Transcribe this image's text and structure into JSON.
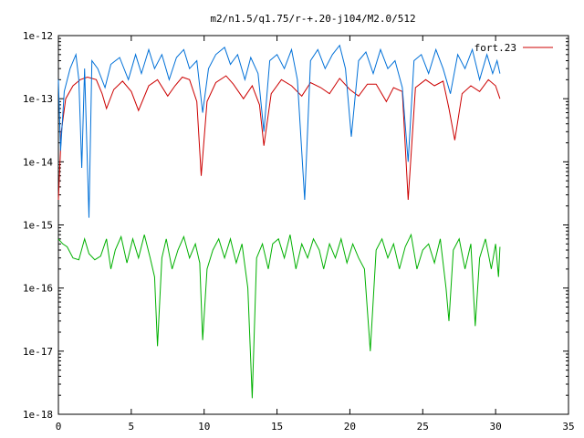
{
  "chart_data": {
    "type": "line",
    "title": "m2/n1.5/q1.75/r-+.20-j104/M2.0/512",
    "xlabel": "",
    "ylabel": "",
    "xlim": [
      0,
      35
    ],
    "ylim": [
      1e-18,
      1e-12
    ],
    "yscale": "log",
    "grid": false,
    "legend_position": "top-right",
    "x_ticks": [
      0,
      5,
      10,
      15,
      20,
      25,
      30,
      35
    ],
    "y_tick_labels": [
      "1e-12",
      "1e-13",
      "1e-14",
      "1e-15",
      "1e-16",
      "1e-17",
      "1e-18"
    ],
    "y_tick_values": [
      1e-12,
      1e-13,
      1e-14,
      1e-15,
      1e-16,
      1e-17,
      1e-18
    ],
    "series": [
      {
        "name": "fort.23",
        "color": "#cc0000",
        "points": [
          [
            0.0,
            2.5e-15
          ],
          [
            0.2,
            3e-14
          ],
          [
            0.5,
            1e-13
          ],
          [
            1.0,
            1.6e-13
          ],
          [
            1.5,
            2e-13
          ],
          [
            2.0,
            2.2e-13
          ],
          [
            2.6,
            2e-13
          ],
          [
            3.0,
            1.2e-13
          ],
          [
            3.3,
            7e-14
          ],
          [
            3.8,
            1.4e-13
          ],
          [
            4.4,
            1.9e-13
          ],
          [
            5.0,
            1.3e-13
          ],
          [
            5.5,
            6.5e-14
          ],
          [
            6.2,
            1.6e-13
          ],
          [
            6.8,
            2e-13
          ],
          [
            7.5,
            1.1e-13
          ],
          [
            8.0,
            1.6e-13
          ],
          [
            8.5,
            2.2e-13
          ],
          [
            9.0,
            2e-13
          ],
          [
            9.5,
            9e-14
          ],
          [
            9.8,
            6e-15
          ],
          [
            10.2,
            9e-14
          ],
          [
            10.8,
            1.8e-13
          ],
          [
            11.5,
            2.3e-13
          ],
          [
            12.0,
            1.7e-13
          ],
          [
            12.7,
            1e-13
          ],
          [
            13.3,
            1.6e-13
          ],
          [
            13.8,
            8e-14
          ],
          [
            14.1,
            1.8e-14
          ],
          [
            14.6,
            1.2e-13
          ],
          [
            15.3,
            2e-13
          ],
          [
            16.0,
            1.6e-13
          ],
          [
            16.7,
            1.1e-13
          ],
          [
            17.3,
            1.8e-13
          ],
          [
            18.0,
            1.5e-13
          ],
          [
            18.6,
            1.2e-13
          ],
          [
            19.3,
            2.1e-13
          ],
          [
            20.0,
            1.4e-13
          ],
          [
            20.6,
            1.1e-13
          ],
          [
            21.2,
            1.7e-13
          ],
          [
            21.8,
            1.7e-13
          ],
          [
            22.5,
            9e-14
          ],
          [
            23.0,
            1.5e-13
          ],
          [
            23.6,
            1.3e-13
          ],
          [
            24.0,
            2.5e-15
          ],
          [
            24.5,
            1.5e-13
          ],
          [
            25.2,
            2e-13
          ],
          [
            25.8,
            1.6e-13
          ],
          [
            26.4,
            1.9e-13
          ],
          [
            26.8,
            7e-14
          ],
          [
            27.2,
            2.2e-14
          ],
          [
            27.7,
            1.2e-13
          ],
          [
            28.3,
            1.6e-13
          ],
          [
            28.9,
            1.3e-13
          ],
          [
            29.5,
            2e-13
          ],
          [
            30.0,
            1.6e-13
          ],
          [
            30.3,
            1e-13
          ]
        ]
      },
      {
        "name": "",
        "color": "#0070d8",
        "points": [
          [
            0.0,
            2e-13
          ],
          [
            0.15,
            1.5e-14
          ],
          [
            0.4,
            1.3e-13
          ],
          [
            0.8,
            3e-13
          ],
          [
            1.2,
            5e-13
          ],
          [
            1.4,
            2e-13
          ],
          [
            1.6,
            8e-15
          ],
          [
            1.8,
            3e-13
          ],
          [
            2.1,
            1.3e-15
          ],
          [
            2.3,
            4e-13
          ],
          [
            2.7,
            3e-13
          ],
          [
            3.2,
            1.5e-13
          ],
          [
            3.6,
            3.5e-13
          ],
          [
            4.2,
            4.5e-13
          ],
          [
            4.8,
            2e-13
          ],
          [
            5.3,
            5e-13
          ],
          [
            5.7,
            2.5e-13
          ],
          [
            6.2,
            6e-13
          ],
          [
            6.6,
            3e-13
          ],
          [
            7.1,
            5e-13
          ],
          [
            7.6,
            2e-13
          ],
          [
            8.1,
            4.5e-13
          ],
          [
            8.6,
            6e-13
          ],
          [
            9.0,
            3e-13
          ],
          [
            9.5,
            4e-13
          ],
          [
            9.9,
            6e-14
          ],
          [
            10.3,
            3e-13
          ],
          [
            10.8,
            5e-13
          ],
          [
            11.4,
            6.5e-13
          ],
          [
            11.8,
            3.5e-13
          ],
          [
            12.3,
            5e-13
          ],
          [
            12.8,
            2e-13
          ],
          [
            13.2,
            4.5e-13
          ],
          [
            13.7,
            2.5e-13
          ],
          [
            14.1,
            3e-14
          ],
          [
            14.5,
            4e-13
          ],
          [
            15.0,
            5e-13
          ],
          [
            15.5,
            3e-13
          ],
          [
            16.0,
            6e-13
          ],
          [
            16.4,
            2e-13
          ],
          [
            16.9,
            2.5e-15
          ],
          [
            17.3,
            4e-13
          ],
          [
            17.8,
            6e-13
          ],
          [
            18.3,
            3e-13
          ],
          [
            18.8,
            5e-13
          ],
          [
            19.3,
            7e-13
          ],
          [
            19.7,
            3e-13
          ],
          [
            20.1,
            2.5e-14
          ],
          [
            20.6,
            4e-13
          ],
          [
            21.1,
            5.5e-13
          ],
          [
            21.6,
            2.5e-13
          ],
          [
            22.1,
            6e-13
          ],
          [
            22.6,
            3e-13
          ],
          [
            23.1,
            4e-13
          ],
          [
            23.6,
            1.5e-13
          ],
          [
            24.0,
            1e-14
          ],
          [
            24.4,
            4e-13
          ],
          [
            24.9,
            5e-13
          ],
          [
            25.4,
            2.5e-13
          ],
          [
            25.9,
            6e-13
          ],
          [
            26.4,
            3e-13
          ],
          [
            26.9,
            1.2e-13
          ],
          [
            27.4,
            5e-13
          ],
          [
            27.9,
            3e-13
          ],
          [
            28.4,
            6e-13
          ],
          [
            28.9,
            2e-13
          ],
          [
            29.4,
            5e-13
          ],
          [
            29.8,
            2.5e-13
          ],
          [
            30.1,
            4e-13
          ],
          [
            30.3,
            2.5e-13
          ]
        ]
      },
      {
        "name": "",
        "color": "#00b000",
        "points": [
          [
            0.0,
            6e-16
          ],
          [
            0.3,
            5e-16
          ],
          [
            0.6,
            4.5e-16
          ],
          [
            1.0,
            3e-16
          ],
          [
            1.4,
            2.8e-16
          ],
          [
            1.8,
            6e-16
          ],
          [
            2.1,
            3.5e-16
          ],
          [
            2.5,
            2.8e-16
          ],
          [
            2.9,
            3.2e-16
          ],
          [
            3.3,
            6e-16
          ],
          [
            3.6,
            2e-16
          ],
          [
            3.9,
            4e-16
          ],
          [
            4.3,
            6.5e-16
          ],
          [
            4.7,
            2.5e-16
          ],
          [
            5.1,
            6e-16
          ],
          [
            5.5,
            3e-16
          ],
          [
            5.9,
            7e-16
          ],
          [
            6.3,
            3e-16
          ],
          [
            6.6,
            1.5e-16
          ],
          [
            6.8,
            1.2e-17
          ],
          [
            7.1,
            3e-16
          ],
          [
            7.4,
            6e-16
          ],
          [
            7.8,
            2e-16
          ],
          [
            8.2,
            4e-16
          ],
          [
            8.6,
            6.5e-16
          ],
          [
            9.0,
            3e-16
          ],
          [
            9.4,
            5e-16
          ],
          [
            9.7,
            2.5e-16
          ],
          [
            9.9,
            1.5e-17
          ],
          [
            10.2,
            2e-16
          ],
          [
            10.6,
            4e-16
          ],
          [
            11.0,
            6e-16
          ],
          [
            11.4,
            3e-16
          ],
          [
            11.8,
            6e-16
          ],
          [
            12.2,
            2.5e-16
          ],
          [
            12.6,
            5e-16
          ],
          [
            13.0,
            1e-16
          ],
          [
            13.3,
            1.8e-18
          ],
          [
            13.6,
            3e-16
          ],
          [
            14.0,
            5e-16
          ],
          [
            14.4,
            2e-16
          ],
          [
            14.7,
            5e-16
          ],
          [
            15.1,
            6e-16
          ],
          [
            15.5,
            3e-16
          ],
          [
            15.9,
            7e-16
          ],
          [
            16.3,
            2e-16
          ],
          [
            16.7,
            5e-16
          ],
          [
            17.1,
            3e-16
          ],
          [
            17.5,
            6e-16
          ],
          [
            17.9,
            4e-16
          ],
          [
            18.2,
            2e-16
          ],
          [
            18.6,
            5e-16
          ],
          [
            19.0,
            3e-16
          ],
          [
            19.4,
            6e-16
          ],
          [
            19.8,
            2.5e-16
          ],
          [
            20.2,
            5e-16
          ],
          [
            20.6,
            3e-16
          ],
          [
            21.0,
            2e-16
          ],
          [
            21.4,
            1e-17
          ],
          [
            21.8,
            4e-16
          ],
          [
            22.2,
            6e-16
          ],
          [
            22.6,
            3e-16
          ],
          [
            23.0,
            5e-16
          ],
          [
            23.4,
            2e-16
          ],
          [
            23.8,
            4.5e-16
          ],
          [
            24.2,
            7e-16
          ],
          [
            24.6,
            2e-16
          ],
          [
            25.0,
            4e-16
          ],
          [
            25.4,
            5e-16
          ],
          [
            25.8,
            2.5e-16
          ],
          [
            26.2,
            6e-16
          ],
          [
            26.6,
            1e-16
          ],
          [
            26.8,
            3e-17
          ],
          [
            27.1,
            4e-16
          ],
          [
            27.5,
            6e-16
          ],
          [
            27.9,
            2e-16
          ],
          [
            28.3,
            5e-16
          ],
          [
            28.6,
            2.5e-17
          ],
          [
            28.9,
            3e-16
          ],
          [
            29.3,
            6e-16
          ],
          [
            29.7,
            2e-16
          ],
          [
            30.0,
            5e-16
          ],
          [
            30.2,
            1.5e-16
          ],
          [
            30.3,
            4.5e-16
          ]
        ]
      }
    ]
  }
}
